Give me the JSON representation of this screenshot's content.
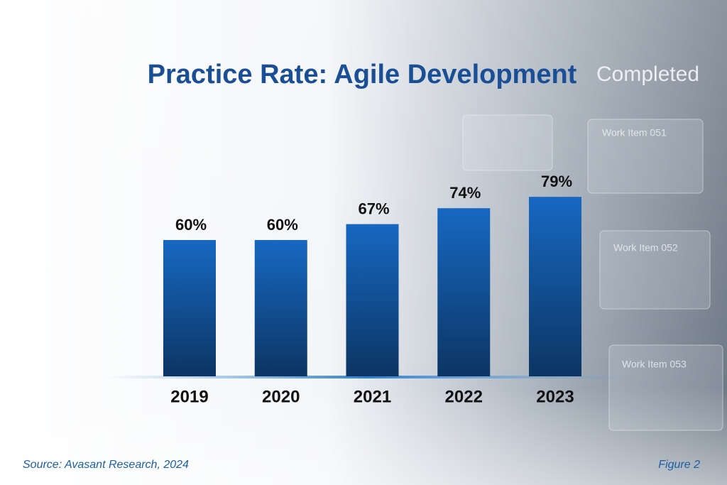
{
  "chart_data": {
    "type": "bar",
    "title": "Practice Rate: Agile Development",
    "categories": [
      "2019",
      "2020",
      "2021",
      "2022",
      "2023"
    ],
    "values": [
      60,
      60,
      67,
      74,
      79
    ],
    "value_labels": [
      "60%",
      "60%",
      "67%",
      "74%",
      "79%"
    ],
    "color": "#1768c2",
    "source": "Source: Avasant Research, 2024",
    "figure": "Figure 2",
    "background_labels": [
      "Completed",
      "Work Item 051",
      "Work Item 052",
      "Work Item 053"
    ]
  }
}
